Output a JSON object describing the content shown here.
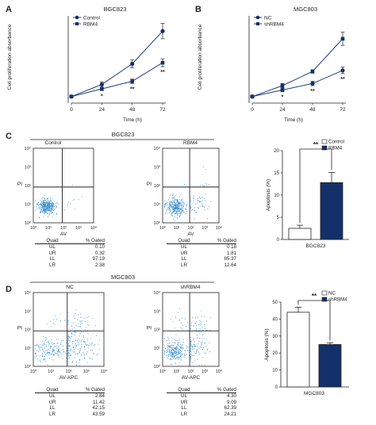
{
  "panels": {
    "A": {
      "letter": "A",
      "title": "BGC823",
      "ylabel": "Cell proliferation absorbance",
      "xlabel": "Time (h)"
    },
    "B": {
      "letter": "B",
      "title": "MGC803",
      "ylabel": "Cell proliferation absorbance",
      "xlabel": "Time (h)"
    },
    "C": {
      "letter": "C",
      "group_title": "BGC823",
      "flow_left_title": "Control",
      "flow_right_title": "RBM4",
      "flow_xlabel": "AV",
      "flow_ylabel": "PI",
      "bar_xlabel": "BGC823",
      "bar_ylabel": "Apoptosis (%)"
    },
    "D": {
      "letter": "D",
      "group_title": "MGC803",
      "flow_left_title": "NC",
      "flow_right_title": "shRBM4",
      "flow_xlabel": "AV-APC",
      "flow_ylabel": "PI",
      "bar_xlabel": "MGC803",
      "bar_ylabel": "Apoptosis (%)"
    }
  },
  "flow_ticks": [
    "10⁰",
    "10¹",
    "10²",
    "10³",
    "10⁴"
  ],
  "tables": {
    "header": [
      "Quad",
      "% Gated"
    ],
    "C_left": [
      [
        "UL",
        "0.10"
      ],
      [
        "UR",
        "0.32"
      ],
      [
        "LL",
        "97.19"
      ],
      [
        "LR",
        "2.38"
      ]
    ],
    "C_right": [
      [
        "UL",
        "0.18"
      ],
      [
        "UR",
        "1.81"
      ],
      [
        "LL",
        "85.37"
      ],
      [
        "LR",
        "12.64"
      ]
    ],
    "D_left": [
      [
        "UL",
        "2.84"
      ],
      [
        "UR",
        "11.42"
      ],
      [
        "LL",
        "42.15"
      ],
      [
        "LR",
        "43.59"
      ]
    ],
    "D_right": [
      [
        "UL",
        "4.30"
      ],
      [
        "UR",
        "9.09"
      ],
      [
        "LL",
        "62.39"
      ],
      [
        "LR",
        "24.21"
      ]
    ]
  },
  "colors": {
    "control": "#1f3f7a",
    "treatment": "#1f3f7a",
    "bar_fill": "#13306a",
    "scatter": "#3a8fd0",
    "grid": "#222222"
  },
  "chart_data": [
    {
      "panel": "A",
      "type": "line",
      "title": "BGC823",
      "xlabel": "Time (h)",
      "ylabel": "Cell proliferation absorbance",
      "x": [
        0,
        24,
        48,
        72
      ],
      "xticks": [
        "0",
        "24",
        "48",
        "72"
      ],
      "series": [
        {
          "name": "Control",
          "marker": "circle",
          "values": [
            0.3,
            0.85,
            1.8,
            3.3
          ],
          "err": [
            0.05,
            0.12,
            0.18,
            0.35
          ]
        },
        {
          "name": "RBM4",
          "marker": "square",
          "values": [
            0.3,
            0.65,
            1.0,
            1.85
          ],
          "err": [
            0.05,
            0.08,
            0.1,
            0.18
          ]
        }
      ],
      "annotations": [
        "*",
        "**",
        "**"
      ],
      "legend": "top-left",
      "grid": false
    },
    {
      "panel": "B",
      "type": "line",
      "title": "MGC803",
      "xlabel": "Time (h)",
      "ylabel": "Cell proliferation absorbance",
      "x": [
        0,
        24,
        48,
        72
      ],
      "xticks": [
        "0",
        "24",
        "48",
        "72"
      ],
      "series": [
        {
          "name": "NC",
          "marker": "circle",
          "values": [
            0.3,
            0.6,
            0.9,
            1.5
          ],
          "err": [
            0.05,
            0.08,
            0.1,
            0.15
          ]
        },
        {
          "name": "shRBM4",
          "marker": "square",
          "values": [
            0.3,
            0.8,
            1.45,
            2.95
          ],
          "err": [
            0.05,
            0.1,
            0.08,
            0.3
          ]
        }
      ],
      "annotations": [
        "*",
        "**",
        "**"
      ],
      "legend": "top-left",
      "grid": false
    },
    {
      "panel": "C",
      "type": "bar",
      "categories": [
        "Control",
        "RBM4"
      ],
      "values": [
        2.5,
        12.8
      ],
      "err": [
        0.7,
        2.3
      ],
      "ylim": [
        0,
        20
      ],
      "yticks": [
        "0",
        "5",
        "10",
        "15",
        "20"
      ],
      "ylabel": "Apoptosis (%)",
      "xlabel": "BGC823",
      "significance": "**",
      "legend": "top-right"
    },
    {
      "panel": "D",
      "type": "bar",
      "categories": [
        "NC",
        "shRBM4"
      ],
      "values": [
        44,
        25
      ],
      "err": [
        3,
        1
      ],
      "ylim": [
        0,
        50
      ],
      "yticks": [
        "0",
        "10",
        "20",
        "30",
        "40",
        "50"
      ],
      "ylabel": "Apoptosis (%)",
      "xlabel": "MGC803",
      "significance": "**",
      "legend": "top-right"
    }
  ]
}
